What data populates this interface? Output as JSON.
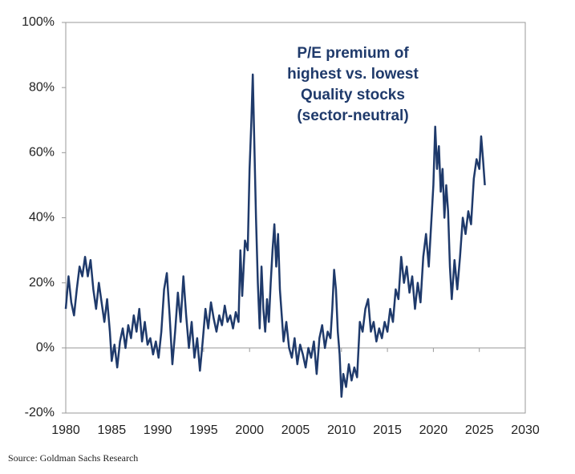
{
  "chart_data": {
    "type": "line",
    "title": [
      "P/E premium of",
      "highest vs. lowest",
      "Quality stocks",
      "(sector-neutral)"
    ],
    "source": "Source: Goldman Sachs Research",
    "xlim": [
      1980,
      2030
    ],
    "xticks": [
      1980,
      1985,
      1990,
      1995,
      2000,
      2005,
      2010,
      2015,
      2020,
      2025,
      2030
    ],
    "ylim": [
      -20,
      100
    ],
    "yticks": [
      {
        "value": -20,
        "label": "-20%"
      },
      {
        "value": 0,
        "label": "0%"
      },
      {
        "value": 20,
        "label": "20%"
      },
      {
        "value": 40,
        "label": "40%"
      },
      {
        "value": 60,
        "label": "60%"
      },
      {
        "value": 80,
        "label": "80%"
      },
      {
        "value": 100,
        "label": "100%"
      }
    ],
    "grid": false,
    "color": "#1f3a6b",
    "x": [
      1980.0,
      1980.3,
      1980.6,
      1980.9,
      1981.2,
      1981.5,
      1981.8,
      1982.1,
      1982.4,
      1982.7,
      1983.0,
      1983.3,
      1983.6,
      1983.9,
      1984.2,
      1984.5,
      1984.8,
      1985.0,
      1985.3,
      1985.6,
      1985.9,
      1986.2,
      1986.5,
      1986.8,
      1987.1,
      1987.4,
      1987.7,
      1988.0,
      1988.3,
      1988.6,
      1988.9,
      1989.2,
      1989.5,
      1989.8,
      1990.1,
      1990.4,
      1990.7,
      1991.0,
      1991.3,
      1991.6,
      1991.9,
      1992.2,
      1992.5,
      1992.8,
      1993.1,
      1993.4,
      1993.7,
      1994.0,
      1994.3,
      1994.6,
      1994.9,
      1995.2,
      1995.5,
      1995.8,
      1996.1,
      1996.4,
      1996.7,
      1997.0,
      1997.3,
      1997.6,
      1997.9,
      1998.2,
      1998.5,
      1998.8,
      1999.0,
      1999.2,
      1999.5,
      1999.8,
      2000.0,
      2000.2,
      2000.35,
      2000.5,
      2000.7,
      2000.9,
      2001.1,
      2001.3,
      2001.5,
      2001.7,
      2001.9,
      2002.1,
      2002.3,
      2002.5,
      2002.7,
      2002.9,
      2003.1,
      2003.3,
      2003.5,
      2003.7,
      2004.0,
      2004.3,
      2004.6,
      2004.9,
      2005.2,
      2005.5,
      2005.8,
      2006.1,
      2006.4,
      2006.7,
      2007.0,
      2007.3,
      2007.6,
      2007.9,
      2008.2,
      2008.5,
      2008.8,
      2009.0,
      2009.2,
      2009.4,
      2009.6,
      2009.8,
      2010.0,
      2010.2,
      2010.5,
      2010.8,
      2011.1,
      2011.4,
      2011.7,
      2012.0,
      2012.3,
      2012.6,
      2012.9,
      2013.2,
      2013.5,
      2013.8,
      2014.1,
      2014.4,
      2014.7,
      2015.0,
      2015.3,
      2015.6,
      2015.9,
      2016.2,
      2016.5,
      2016.8,
      2017.1,
      2017.4,
      2017.7,
      2018.0,
      2018.3,
      2018.6,
      2018.9,
      2019.2,
      2019.5,
      2019.8,
      2020.0,
      2020.2,
      2020.4,
      2020.6,
      2020.8,
      2021.0,
      2021.2,
      2021.4,
      2021.6,
      2021.8,
      2022.0,
      2022.3,
      2022.6,
      2022.9,
      2023.2,
      2023.5,
      2023.8,
      2024.1,
      2024.4,
      2024.7,
      2025.0,
      2025.2,
      2025.4,
      2025.6
    ],
    "values": [
      12,
      22,
      14,
      10,
      18,
      25,
      22,
      28,
      22,
      27,
      18,
      12,
      20,
      14,
      8,
      15,
      5,
      -4,
      1,
      -6,
      2,
      6,
      0,
      7,
      3,
      10,
      5,
      12,
      2,
      8,
      1,
      3,
      -2,
      2,
      -3,
      5,
      18,
      23,
      10,
      -5,
      5,
      17,
      8,
      22,
      10,
      0,
      8,
      -3,
      3,
      -7,
      2,
      12,
      6,
      14,
      9,
      5,
      10,
      7,
      13,
      8,
      10,
      6,
      11,
      8,
      30,
      16,
      33,
      30,
      55,
      70,
      84,
      65,
      40,
      20,
      6,
      25,
      12,
      5,
      15,
      8,
      20,
      30,
      38,
      25,
      35,
      18,
      10,
      2,
      8,
      0,
      -3,
      3,
      -5,
      1,
      -2,
      -6,
      0,
      -3,
      2,
      -8,
      3,
      7,
      0,
      5,
      3,
      12,
      24,
      18,
      5,
      -2,
      -15,
      -8,
      -12,
      -5,
      -10,
      -6,
      -9,
      8,
      5,
      12,
      15,
      5,
      8,
      2,
      6,
      3,
      8,
      5,
      12,
      8,
      18,
      15,
      28,
      20,
      25,
      17,
      22,
      12,
      20,
      14,
      28,
      35,
      25,
      40,
      50,
      68,
      55,
      62,
      48,
      55,
      40,
      50,
      42,
      25,
      15,
      27,
      18,
      28,
      40,
      35,
      42,
      38,
      52,
      58,
      55,
      65,
      58,
      50
    ]
  }
}
